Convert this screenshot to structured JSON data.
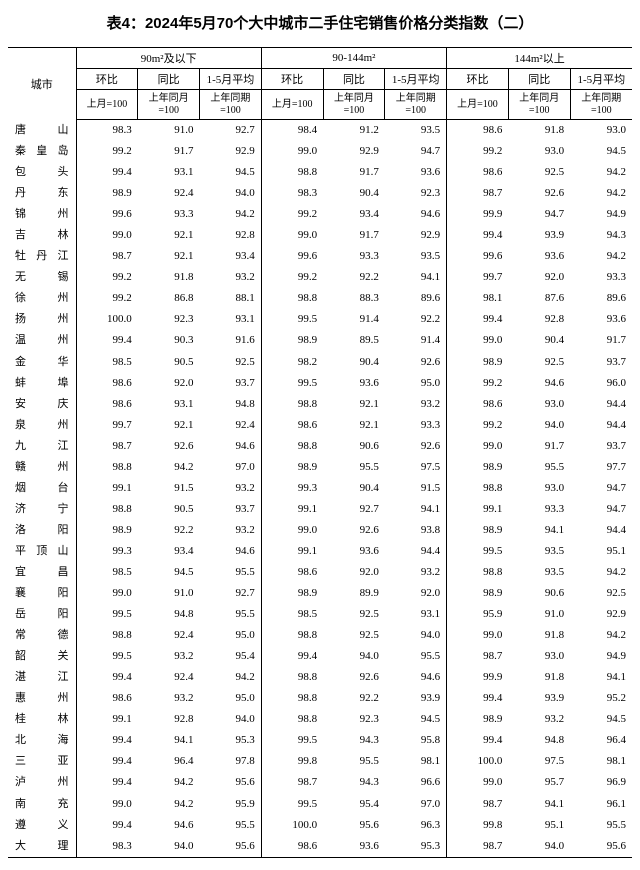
{
  "title": "表4：2024年5月70个大中城市二手住宅销售价格分类指数（二）",
  "header": {
    "city": "城市",
    "groups": [
      "90m²及以下",
      "90-144m²",
      "144m²以上"
    ],
    "subs": [
      "环比",
      "同比",
      "1-5月平均"
    ],
    "subs_last": "1-5月平均",
    "bases": [
      "上月=100",
      "上年同月=100",
      "上年同期=100"
    ]
  },
  "rows": [
    {
      "city": "唐山",
      "v": [
        98.3,
        91.0,
        92.7,
        98.4,
        91.2,
        93.5,
        98.6,
        91.8,
        93.0
      ]
    },
    {
      "city": "秦皇岛",
      "v": [
        99.2,
        91.7,
        92.9,
        99.0,
        92.9,
        94.7,
        99.2,
        93.0,
        94.5
      ]
    },
    {
      "city": "包头",
      "v": [
        99.4,
        93.1,
        94.5,
        98.8,
        91.7,
        93.6,
        98.6,
        92.5,
        94.2
      ]
    },
    {
      "city": "丹东",
      "v": [
        98.9,
        92.4,
        94.0,
        98.3,
        90.4,
        92.3,
        98.7,
        92.6,
        94.2
      ]
    },
    {
      "city": "锦州",
      "v": [
        99.6,
        93.3,
        94.2,
        99.2,
        93.4,
        94.6,
        99.9,
        94.7,
        94.9
      ]
    },
    {
      "city": "吉林",
      "v": [
        99.0,
        92.1,
        92.8,
        99.0,
        91.7,
        92.9,
        99.4,
        93.9,
        94.3
      ]
    },
    {
      "city": "牡丹江",
      "v": [
        98.7,
        92.1,
        93.4,
        99.6,
        93.3,
        93.5,
        99.6,
        93.6,
        94.2
      ]
    },
    {
      "city": "无锡",
      "v": [
        99.2,
        91.8,
        93.2,
        99.2,
        92.2,
        94.1,
        99.7,
        92.0,
        93.3
      ]
    },
    {
      "city": "徐州",
      "v": [
        99.2,
        86.8,
        88.1,
        98.8,
        88.3,
        89.6,
        98.1,
        87.6,
        89.6
      ]
    },
    {
      "city": "扬州",
      "v": [
        100.0,
        92.3,
        93.1,
        99.5,
        91.4,
        92.2,
        99.4,
        92.8,
        93.6
      ]
    },
    {
      "city": "温州",
      "v": [
        99.4,
        90.3,
        91.6,
        98.9,
        89.5,
        91.4,
        99.0,
        90.4,
        91.7
      ]
    },
    {
      "city": "金华",
      "v": [
        98.5,
        90.5,
        92.5,
        98.2,
        90.4,
        92.6,
        98.9,
        92.5,
        93.7
      ]
    },
    {
      "city": "蚌埠",
      "v": [
        98.6,
        92.0,
        93.7,
        99.5,
        93.6,
        95.0,
        99.2,
        94.6,
        96.0
      ]
    },
    {
      "city": "安庆",
      "v": [
        98.6,
        93.1,
        94.8,
        98.8,
        92.1,
        93.2,
        98.6,
        93.0,
        94.4
      ]
    },
    {
      "city": "泉州",
      "v": [
        99.7,
        92.1,
        92.4,
        98.6,
        92.1,
        93.3,
        99.2,
        94.0,
        94.4
      ]
    },
    {
      "city": "九江",
      "v": [
        98.7,
        92.6,
        94.6,
        98.8,
        90.6,
        92.6,
        99.0,
        91.7,
        93.7
      ]
    },
    {
      "city": "赣州",
      "v": [
        98.8,
        94.2,
        97.0,
        98.9,
        95.5,
        97.5,
        98.9,
        95.5,
        97.7
      ]
    },
    {
      "city": "烟台",
      "v": [
        99.1,
        91.5,
        93.2,
        99.3,
        90.4,
        91.5,
        98.8,
        93.0,
        94.7
      ]
    },
    {
      "city": "济宁",
      "v": [
        98.8,
        90.5,
        93.7,
        99.1,
        92.7,
        94.1,
        99.1,
        93.3,
        94.7
      ]
    },
    {
      "city": "洛阳",
      "v": [
        98.9,
        92.2,
        93.2,
        99.0,
        92.6,
        93.8,
        98.9,
        94.1,
        94.4
      ]
    },
    {
      "city": "平顶山",
      "v": [
        99.3,
        93.4,
        94.6,
        99.1,
        93.6,
        94.4,
        99.5,
        93.5,
        95.1
      ]
    },
    {
      "city": "宜昌",
      "v": [
        98.5,
        94.5,
        95.5,
        98.6,
        92.0,
        93.2,
        98.8,
        93.5,
        94.2
      ]
    },
    {
      "city": "襄阳",
      "v": [
        99.0,
        91.0,
        92.7,
        98.9,
        89.9,
        92.0,
        98.9,
        90.6,
        92.5
      ]
    },
    {
      "city": "岳阳",
      "v": [
        99.5,
        94.8,
        95.5,
        98.5,
        92.5,
        93.1,
        95.9,
        91.0,
        92.9
      ]
    },
    {
      "city": "常德",
      "v": [
        98.8,
        92.4,
        95.0,
        98.8,
        92.5,
        94.0,
        99.0,
        91.8,
        94.2
      ]
    },
    {
      "city": "韶关",
      "v": [
        99.5,
        93.2,
        95.4,
        99.4,
        94.0,
        95.5,
        98.7,
        93.0,
        94.9
      ]
    },
    {
      "city": "湛江",
      "v": [
        99.4,
        92.4,
        94.2,
        98.8,
        92.6,
        94.6,
        99.9,
        91.8,
        94.1
      ]
    },
    {
      "city": "惠州",
      "v": [
        98.6,
        93.2,
        95.0,
        98.8,
        92.2,
        93.9,
        99.4,
        93.9,
        95.2
      ]
    },
    {
      "city": "桂林",
      "v": [
        99.1,
        92.8,
        94.0,
        98.8,
        92.3,
        94.5,
        98.9,
        93.2,
        94.5
      ]
    },
    {
      "city": "北海",
      "v": [
        99.4,
        94.1,
        95.3,
        99.5,
        94.3,
        95.8,
        99.4,
        94.8,
        96.4
      ]
    },
    {
      "city": "三亚",
      "v": [
        99.4,
        96.4,
        97.8,
        99.8,
        95.5,
        98.1,
        100.0,
        97.5,
        98.1
      ]
    },
    {
      "city": "泸州",
      "v": [
        99.4,
        94.2,
        95.6,
        98.7,
        94.3,
        96.6,
        99.0,
        95.7,
        96.9
      ]
    },
    {
      "city": "南充",
      "v": [
        99.0,
        94.2,
        95.9,
        99.5,
        95.4,
        97.0,
        98.7,
        94.1,
        96.1
      ]
    },
    {
      "city": "遵义",
      "v": [
        99.4,
        94.6,
        95.5,
        100.0,
        95.6,
        96.3,
        99.8,
        95.1,
        95.5
      ]
    },
    {
      "city": "大理",
      "v": [
        98.3,
        94.0,
        95.6,
        98.6,
        93.6,
        95.3,
        98.7,
        94.0,
        95.6
      ]
    }
  ]
}
